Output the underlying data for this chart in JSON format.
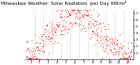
{
  "title": "Milwaukee Weather  Solar Radiation  per Day KW/m²",
  "title_fontsize": 4.2,
  "bg_color": "#ffffff",
  "dot_color": "#ff0000",
  "dot_color2": "#000000",
  "ylim": [
    0,
    7.5
  ],
  "yticks": [
    1,
    2,
    3,
    4,
    5,
    6,
    7
  ],
  "ytick_labels": [
    "7",
    "6",
    "5",
    "4",
    "3",
    "2",
    "1"
  ],
  "ytick_fontsize": 3.2,
  "xtick_fontsize": 2.8,
  "grid_color": "#bbbbbb",
  "legend_box_color": "#dd0000",
  "months": [
    "1",
    "2",
    "3",
    "4",
    "5",
    "6",
    "7",
    "8",
    "9",
    "10",
    "11",
    "12"
  ],
  "n_days": 365,
  "seed": 42
}
